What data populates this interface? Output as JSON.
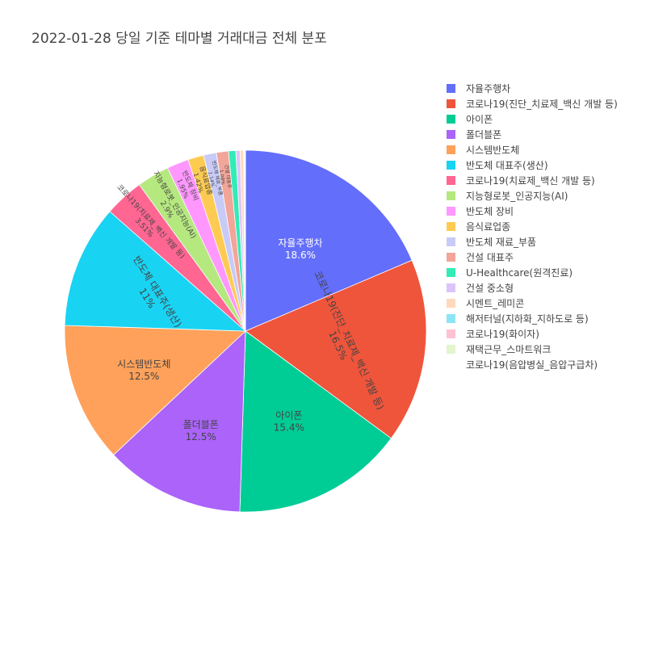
{
  "chart_data": {
    "type": "pie",
    "title": "2022-01-28 당일 기준 테마별 거래대금 전체 분포",
    "sort": "descending",
    "direction": "clockwise",
    "legend_placement": "right",
    "slices": [
      {
        "label": "자율주행차",
        "value": 18.6,
        "text": "18.6%",
        "color": "#636efa",
        "text_color": "#ffffff"
      },
      {
        "label": "코로나19(진단_치료제_백신 개발 등)",
        "value": 16.5,
        "text": "16.5%",
        "color": "#ef553b",
        "text_color": "#444444"
      },
      {
        "label": "아이폰",
        "value": 15.4,
        "text": "15.4%",
        "color": "#00cc96",
        "text_color": "#444444"
      },
      {
        "label": "폴더블폰",
        "value": 12.5,
        "text": "12.5%",
        "color": "#ab63fa",
        "text_color": "#444444"
      },
      {
        "label": "시스템반도체",
        "value": 12.5,
        "text": "12.5%",
        "color": "#ffa15a",
        "text_color": "#444444"
      },
      {
        "label": "반도체 대표주(생산)",
        "value": 11,
        "text": "11%",
        "color": "#19d3f3",
        "text_color": "#444444"
      },
      {
        "label": "코로나19(치료제_백신 개발 등)",
        "value": 3.51,
        "text": "3.51%",
        "color": "#ff6692",
        "text_color": "#444444"
      },
      {
        "label": "지능형로봇_인공지능(AI)",
        "value": 2.9,
        "text": "2.9%",
        "color": "#b6e880",
        "text_color": "#444444"
      },
      {
        "label": "반도체 장비",
        "value": 1.95,
        "text": "1.95%",
        "color": "#ff97ff",
        "text_color": "#444444"
      },
      {
        "label": "음식료업종",
        "value": 1.42,
        "text": "1.42%",
        "color": "#fecb52",
        "text_color": "#444444"
      },
      {
        "label": "반도체 재료_부품",
        "value": 1.14,
        "text": "1.14%",
        "color": "#c8cbf7",
        "text_color": "#444444"
      },
      {
        "label": "건설 대표주",
        "value": 1.08,
        "text": "1.08%",
        "color": "#f2a599",
        "text_color": "#444444"
      },
      {
        "label": "U-Healthcare(원격진료)",
        "value": 0.65,
        "text": "",
        "color": "#33ebb6",
        "text_color": "#444444"
      },
      {
        "label": "건설 중소형",
        "value": 0.38,
        "text": "",
        "color": "#dcc4fb",
        "text_color": "#444444"
      },
      {
        "label": "시멘트_레미콘",
        "value": 0.3,
        "text": "",
        "color": "#ffd9bc",
        "text_color": "#444444"
      },
      {
        "label": "해저터널(지하화_지하도로 등)",
        "value": 0.07,
        "text": "",
        "color": "#8ce4f7",
        "text_color": "#444444"
      },
      {
        "label": "코로나19(화이자)",
        "value": 0.06,
        "text": "",
        "color": "#ffc2d3",
        "text_color": "#444444"
      },
      {
        "label": "재택근무_스마트워크",
        "value": 0.03,
        "text": "",
        "color": "#e2f5cc",
        "text_color": "#444444"
      },
      {
        "label": "코로나19(음압병실_음압구급차)",
        "value": 0.01,
        "text": "",
        "color": "#ffffff",
        "text_color": "#444444"
      }
    ]
  }
}
